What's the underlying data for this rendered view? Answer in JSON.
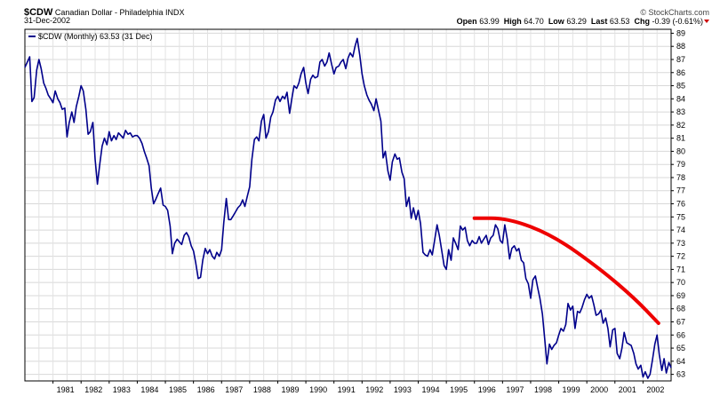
{
  "header": {
    "symbol": "$CDW",
    "name": "Canadian Dollar - Philadelphia",
    "exchange": "INDX",
    "date": "31-Dec-2002",
    "credit": "© StockCharts.com",
    "open_label": "Open",
    "open_value": "63.99",
    "high_label": "High",
    "high_value": "64.70",
    "low_label": "Low",
    "low_value": "63.29",
    "last_label": "Last",
    "last_value": "63.53",
    "chg_label": "Chg",
    "chg_value": "-0.39 (-0.61%)",
    "chg_arrow_color": "#cc0000"
  },
  "chart_data": {
    "type": "line",
    "legend_text": "$CDW (Monthly) 63.53 (31 Dec)",
    "y_axis_side": "right",
    "ylim": [
      62.5,
      89.3
    ],
    "y_ticks": [
      63,
      64,
      65,
      66,
      67,
      68,
      69,
      70,
      71,
      72,
      73,
      74,
      75,
      76,
      77,
      78,
      79,
      80,
      81,
      82,
      83,
      84,
      85,
      86,
      87,
      88,
      89
    ],
    "x_range": [
      1980.0,
      2003.0
    ],
    "x_tick_labels": [
      "1981",
      "1982",
      "1983",
      "1984",
      "1985",
      "1986",
      "1987",
      "1988",
      "1989",
      "1990",
      "1991",
      "1992",
      "1993",
      "1994",
      "1995",
      "1996",
      "1997",
      "1998",
      "1999",
      "2000",
      "2001",
      "2002"
    ],
    "grid": true,
    "line_color": "#00008b",
    "series": [
      {
        "name": "$CDW",
        "points": [
          [
            1980.0,
            86.4
          ],
          [
            1980.17,
            87.2
          ],
          [
            1980.25,
            83.8
          ],
          [
            1980.33,
            84.1
          ],
          [
            1980.42,
            86.2
          ],
          [
            1980.5,
            87.0
          ],
          [
            1980.58,
            86.3
          ],
          [
            1980.67,
            85.2
          ],
          [
            1980.75,
            84.8
          ],
          [
            1980.83,
            84.3
          ],
          [
            1980.92,
            84.0
          ],
          [
            1981.0,
            83.7
          ],
          [
            1981.08,
            84.6
          ],
          [
            1981.17,
            84.0
          ],
          [
            1981.25,
            83.7
          ],
          [
            1981.33,
            83.2
          ],
          [
            1981.42,
            83.3
          ],
          [
            1981.5,
            81.1
          ],
          [
            1981.58,
            82.2
          ],
          [
            1981.67,
            83.0
          ],
          [
            1981.75,
            82.2
          ],
          [
            1981.83,
            83.4
          ],
          [
            1981.92,
            84.2
          ],
          [
            1982.0,
            85.0
          ],
          [
            1982.08,
            84.6
          ],
          [
            1982.17,
            83.2
          ],
          [
            1982.25,
            81.3
          ],
          [
            1982.33,
            81.5
          ],
          [
            1982.42,
            82.2
          ],
          [
            1982.5,
            79.4
          ],
          [
            1982.58,
            77.5
          ],
          [
            1982.67,
            79.1
          ],
          [
            1982.75,
            80.4
          ],
          [
            1982.83,
            81.0
          ],
          [
            1982.92,
            80.5
          ],
          [
            1983.0,
            81.5
          ],
          [
            1983.08,
            80.8
          ],
          [
            1983.17,
            81.2
          ],
          [
            1983.25,
            80.9
          ],
          [
            1983.33,
            81.4
          ],
          [
            1983.42,
            81.2
          ],
          [
            1983.5,
            81.0
          ],
          [
            1983.58,
            81.6
          ],
          [
            1983.67,
            81.3
          ],
          [
            1983.75,
            81.4
          ],
          [
            1983.83,
            81.1
          ],
          [
            1983.92,
            81.2
          ],
          [
            1984.0,
            81.2
          ],
          [
            1984.08,
            81.0
          ],
          [
            1984.17,
            80.6
          ],
          [
            1984.25,
            80.0
          ],
          [
            1984.33,
            79.5
          ],
          [
            1984.42,
            78.9
          ],
          [
            1984.5,
            77.2
          ],
          [
            1984.58,
            76.0
          ],
          [
            1984.67,
            76.4
          ],
          [
            1984.75,
            76.8
          ],
          [
            1984.83,
            77.2
          ],
          [
            1984.92,
            75.9
          ],
          [
            1985.0,
            75.8
          ],
          [
            1985.08,
            75.5
          ],
          [
            1985.17,
            74.3
          ],
          [
            1985.25,
            72.2
          ],
          [
            1985.33,
            73.0
          ],
          [
            1985.42,
            73.3
          ],
          [
            1985.5,
            73.1
          ],
          [
            1985.58,
            72.9
          ],
          [
            1985.67,
            73.6
          ],
          [
            1985.75,
            73.8
          ],
          [
            1985.83,
            73.5
          ],
          [
            1985.92,
            72.8
          ],
          [
            1986.0,
            72.4
          ],
          [
            1986.08,
            71.5
          ],
          [
            1986.17,
            70.3
          ],
          [
            1986.25,
            70.4
          ],
          [
            1986.33,
            71.7
          ],
          [
            1986.42,
            72.6
          ],
          [
            1986.5,
            72.2
          ],
          [
            1986.58,
            72.5
          ],
          [
            1986.67,
            72.0
          ],
          [
            1986.75,
            71.8
          ],
          [
            1986.83,
            72.3
          ],
          [
            1986.92,
            72.0
          ],
          [
            1987.0,
            72.5
          ],
          [
            1987.08,
            74.6
          ],
          [
            1987.17,
            76.4
          ],
          [
            1987.25,
            74.8
          ],
          [
            1987.33,
            74.8
          ],
          [
            1987.42,
            75.1
          ],
          [
            1987.5,
            75.4
          ],
          [
            1987.58,
            75.7
          ],
          [
            1987.67,
            75.9
          ],
          [
            1987.75,
            76.3
          ],
          [
            1987.83,
            75.8
          ],
          [
            1987.92,
            76.6
          ],
          [
            1988.0,
            77.3
          ],
          [
            1988.08,
            79.4
          ],
          [
            1988.17,
            80.9
          ],
          [
            1988.25,
            81.1
          ],
          [
            1988.33,
            80.8
          ],
          [
            1988.42,
            82.3
          ],
          [
            1988.5,
            82.8
          ],
          [
            1988.58,
            81.0
          ],
          [
            1988.67,
            81.5
          ],
          [
            1988.75,
            82.6
          ],
          [
            1988.83,
            83.0
          ],
          [
            1988.92,
            83.9
          ],
          [
            1989.0,
            84.2
          ],
          [
            1989.08,
            83.8
          ],
          [
            1989.17,
            84.2
          ],
          [
            1989.25,
            84.0
          ],
          [
            1989.33,
            84.5
          ],
          [
            1989.42,
            82.9
          ],
          [
            1989.5,
            84.0
          ],
          [
            1989.58,
            85.0
          ],
          [
            1989.67,
            84.8
          ],
          [
            1989.75,
            85.2
          ],
          [
            1989.83,
            85.9
          ],
          [
            1989.92,
            86.4
          ],
          [
            1990.0,
            85.2
          ],
          [
            1990.08,
            84.4
          ],
          [
            1990.17,
            85.5
          ],
          [
            1990.25,
            85.8
          ],
          [
            1990.33,
            85.6
          ],
          [
            1990.42,
            85.7
          ],
          [
            1990.5,
            86.8
          ],
          [
            1990.58,
            87.0
          ],
          [
            1990.67,
            86.5
          ],
          [
            1990.75,
            86.8
          ],
          [
            1990.83,
            87.5
          ],
          [
            1990.92,
            86.6
          ],
          [
            1991.0,
            85.9
          ],
          [
            1991.08,
            86.4
          ],
          [
            1991.17,
            86.5
          ],
          [
            1991.25,
            86.8
          ],
          [
            1991.33,
            87.0
          ],
          [
            1991.42,
            86.3
          ],
          [
            1991.5,
            87.1
          ],
          [
            1991.58,
            87.5
          ],
          [
            1991.67,
            87.2
          ],
          [
            1991.75,
            88.0
          ],
          [
            1991.83,
            88.6
          ],
          [
            1991.92,
            87.3
          ],
          [
            1992.0,
            85.9
          ],
          [
            1992.08,
            85.0
          ],
          [
            1992.17,
            84.3
          ],
          [
            1992.25,
            83.9
          ],
          [
            1992.33,
            83.6
          ],
          [
            1992.42,
            83.1
          ],
          [
            1992.5,
            84.0
          ],
          [
            1992.58,
            83.2
          ],
          [
            1992.67,
            82.3
          ],
          [
            1992.75,
            79.5
          ],
          [
            1992.83,
            80.0
          ],
          [
            1992.92,
            78.5
          ],
          [
            1993.0,
            77.8
          ],
          [
            1993.08,
            79.2
          ],
          [
            1993.17,
            79.8
          ],
          [
            1993.25,
            79.4
          ],
          [
            1993.33,
            79.5
          ],
          [
            1993.42,
            78.4
          ],
          [
            1993.5,
            77.9
          ],
          [
            1993.58,
            75.8
          ],
          [
            1993.67,
            76.5
          ],
          [
            1993.75,
            74.9
          ],
          [
            1993.83,
            75.7
          ],
          [
            1993.92,
            74.8
          ],
          [
            1994.0,
            75.5
          ],
          [
            1994.08,
            74.5
          ],
          [
            1994.17,
            72.3
          ],
          [
            1994.25,
            72.1
          ],
          [
            1994.33,
            72.0
          ],
          [
            1994.42,
            72.5
          ],
          [
            1994.5,
            72.1
          ],
          [
            1994.58,
            73.2
          ],
          [
            1994.67,
            74.4
          ],
          [
            1994.75,
            73.6
          ],
          [
            1994.83,
            72.5
          ],
          [
            1994.92,
            71.3
          ],
          [
            1995.0,
            71.0
          ],
          [
            1995.08,
            72.5
          ],
          [
            1995.17,
            71.7
          ],
          [
            1995.25,
            73.4
          ],
          [
            1995.33,
            73.0
          ],
          [
            1995.42,
            72.5
          ],
          [
            1995.5,
            74.3
          ],
          [
            1995.58,
            74.0
          ],
          [
            1995.67,
            74.2
          ],
          [
            1995.75,
            73.2
          ],
          [
            1995.83,
            72.8
          ],
          [
            1995.92,
            73.2
          ],
          [
            1996.0,
            73.0
          ],
          [
            1996.08,
            73.0
          ],
          [
            1996.17,
            73.5
          ],
          [
            1996.25,
            73.0
          ],
          [
            1996.33,
            73.3
          ],
          [
            1996.42,
            73.6
          ],
          [
            1996.5,
            72.9
          ],
          [
            1996.58,
            73.4
          ],
          [
            1996.67,
            73.6
          ],
          [
            1996.75,
            74.4
          ],
          [
            1996.83,
            74.1
          ],
          [
            1996.92,
            73.2
          ],
          [
            1997.0,
            73.0
          ],
          [
            1997.08,
            74.4
          ],
          [
            1997.17,
            73.3
          ],
          [
            1997.25,
            71.8
          ],
          [
            1997.33,
            72.6
          ],
          [
            1997.42,
            72.8
          ],
          [
            1997.5,
            72.4
          ],
          [
            1997.58,
            72.6
          ],
          [
            1997.67,
            71.7
          ],
          [
            1997.75,
            71.5
          ],
          [
            1997.83,
            70.3
          ],
          [
            1997.92,
            69.9
          ],
          [
            1998.0,
            68.8
          ],
          [
            1998.08,
            70.2
          ],
          [
            1998.17,
            70.5
          ],
          [
            1998.25,
            69.6
          ],
          [
            1998.33,
            68.8
          ],
          [
            1998.42,
            67.6
          ],
          [
            1998.5,
            65.7
          ],
          [
            1998.58,
            63.8
          ],
          [
            1998.67,
            65.3
          ],
          [
            1998.75,
            64.9
          ],
          [
            1998.83,
            65.2
          ],
          [
            1998.92,
            65.4
          ],
          [
            1999.0,
            66.0
          ],
          [
            1999.08,
            66.5
          ],
          [
            1999.17,
            66.3
          ],
          [
            1999.25,
            66.8
          ],
          [
            1999.33,
            68.4
          ],
          [
            1999.42,
            67.9
          ],
          [
            1999.5,
            68.2
          ],
          [
            1999.58,
            66.5
          ],
          [
            1999.67,
            67.8
          ],
          [
            1999.75,
            67.7
          ],
          [
            1999.83,
            68.1
          ],
          [
            1999.92,
            68.7
          ],
          [
            2000.0,
            69.1
          ],
          [
            2000.08,
            68.8
          ],
          [
            2000.17,
            69.0
          ],
          [
            2000.25,
            68.3
          ],
          [
            2000.33,
            67.5
          ],
          [
            2000.42,
            67.6
          ],
          [
            2000.5,
            67.9
          ],
          [
            2000.58,
            66.9
          ],
          [
            2000.67,
            67.3
          ],
          [
            2000.75,
            66.5
          ],
          [
            2000.83,
            65.1
          ],
          [
            2000.92,
            66.4
          ],
          [
            2001.0,
            66.5
          ],
          [
            2001.08,
            64.6
          ],
          [
            2001.17,
            64.2
          ],
          [
            2001.25,
            65.0
          ],
          [
            2001.33,
            66.2
          ],
          [
            2001.42,
            65.4
          ],
          [
            2001.5,
            65.3
          ],
          [
            2001.58,
            65.2
          ],
          [
            2001.67,
            64.6
          ],
          [
            2001.75,
            63.8
          ],
          [
            2001.83,
            63.4
          ],
          [
            2001.92,
            63.7
          ],
          [
            2002.0,
            62.8
          ],
          [
            2002.08,
            63.2
          ],
          [
            2002.17,
            62.7
          ],
          [
            2002.25,
            63.0
          ],
          [
            2002.33,
            64.0
          ],
          [
            2002.42,
            65.3
          ],
          [
            2002.5,
            66.0
          ],
          [
            2002.58,
            64.5
          ],
          [
            2002.67,
            63.3
          ],
          [
            2002.75,
            64.2
          ],
          [
            2002.83,
            63.1
          ],
          [
            2002.92,
            63.9
          ],
          [
            2003.0,
            63.5
          ]
        ]
      }
    ],
    "annotation": {
      "type": "curve",
      "color": "#ee0000",
      "points": [
        [
          1996.0,
          74.9
        ],
        [
          1997.2,
          74.9
        ],
        [
          1998.8,
          73.6
        ],
        [
          2000.5,
          71.0
        ],
        [
          2001.7,
          68.8
        ],
        [
          2002.55,
          66.9
        ]
      ]
    }
  }
}
